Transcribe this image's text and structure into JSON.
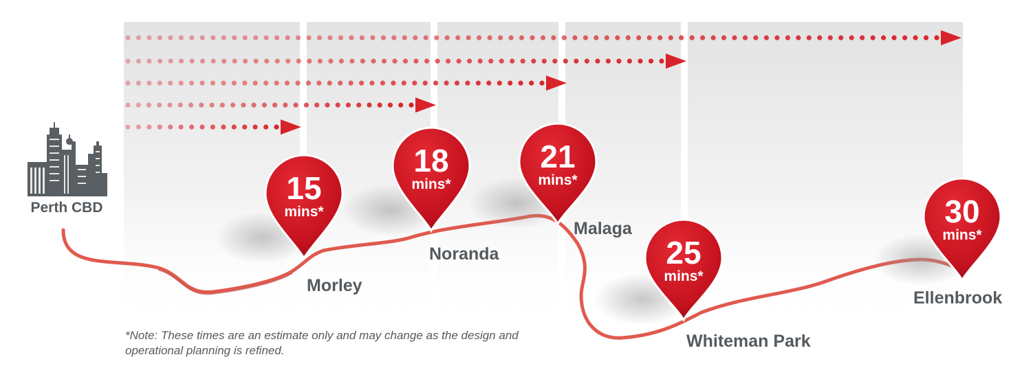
{
  "origin": {
    "label": "Perth CBD",
    "icon": "city-skyline-icon"
  },
  "stations": [
    {
      "name": "Morley",
      "time_value": "15",
      "time_unit": "mins*"
    },
    {
      "name": "Noranda",
      "time_value": "18",
      "time_unit": "mins*"
    },
    {
      "name": "Malaga",
      "time_value": "21",
      "time_unit": "mins*"
    },
    {
      "name": "Whiteman Park",
      "time_value": "25",
      "time_unit": "mins*"
    },
    {
      "name": "Ellenbrook",
      "time_value": "30",
      "time_unit": "mins*"
    }
  ],
  "note": "*Note: These times are an estimate only and may change as the design and operational planning is refined.",
  "colors": {
    "pin": "#c8102e",
    "route": "#e05a4e",
    "arrow": "#d8232a",
    "label": "#555a5e",
    "panel": "#e9e9e9"
  }
}
